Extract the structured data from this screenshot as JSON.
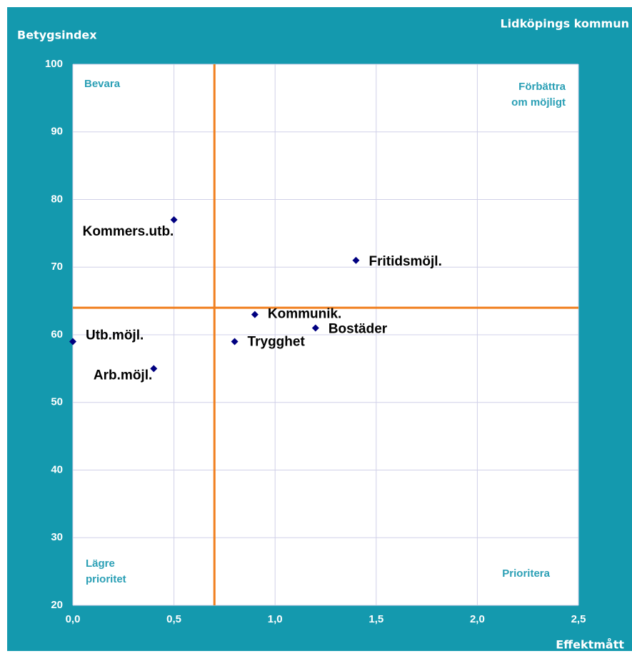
{
  "chart_data": {
    "type": "scatter",
    "title": "Lidköpings kommun",
    "ylabel": "Betygsindex",
    "xlabel": "Effektmått",
    "labels": [
      "Kommers.utb.",
      "Fritidsmöjl.",
      "Kommunik.",
      "Bostäder",
      "Trygghet",
      "Utb.möjl.",
      "Arb.möjl."
    ],
    "x": [
      0.5,
      1.4,
      0.9,
      1.2,
      0.8,
      0.0,
      0.4
    ],
    "values": [
      77,
      71,
      63,
      61,
      59,
      59,
      55
    ],
    "color": "#000080",
    "xlim": [
      0,
      2.5
    ],
    "ylim": [
      20,
      100
    ],
    "xticks": [
      {
        "value": 0,
        "label": "0,0"
      },
      {
        "value": 0.5,
        "label": "0,5"
      },
      {
        "value": 1,
        "label": "1,0"
      },
      {
        "value": 1.5,
        "label": "1,5"
      },
      {
        "value": 2,
        "label": "2,0"
      },
      {
        "value": 2.5,
        "label": "2,5"
      }
    ],
    "yticks": [
      20,
      30,
      40,
      50,
      60,
      70,
      80,
      90,
      100
    ],
    "grid": true,
    "reference_lines": {
      "x": 0.7,
      "y": 64,
      "color": "#f07f1e"
    },
    "quadrants": {
      "top_left": [
        "Bevara"
      ],
      "top_right": [
        "Förbättra",
        "om möjligt"
      ],
      "bottom_left": [
        "Lägre",
        "prioritet"
      ],
      "bottom_right": [
        "Prioritera"
      ]
    }
  }
}
